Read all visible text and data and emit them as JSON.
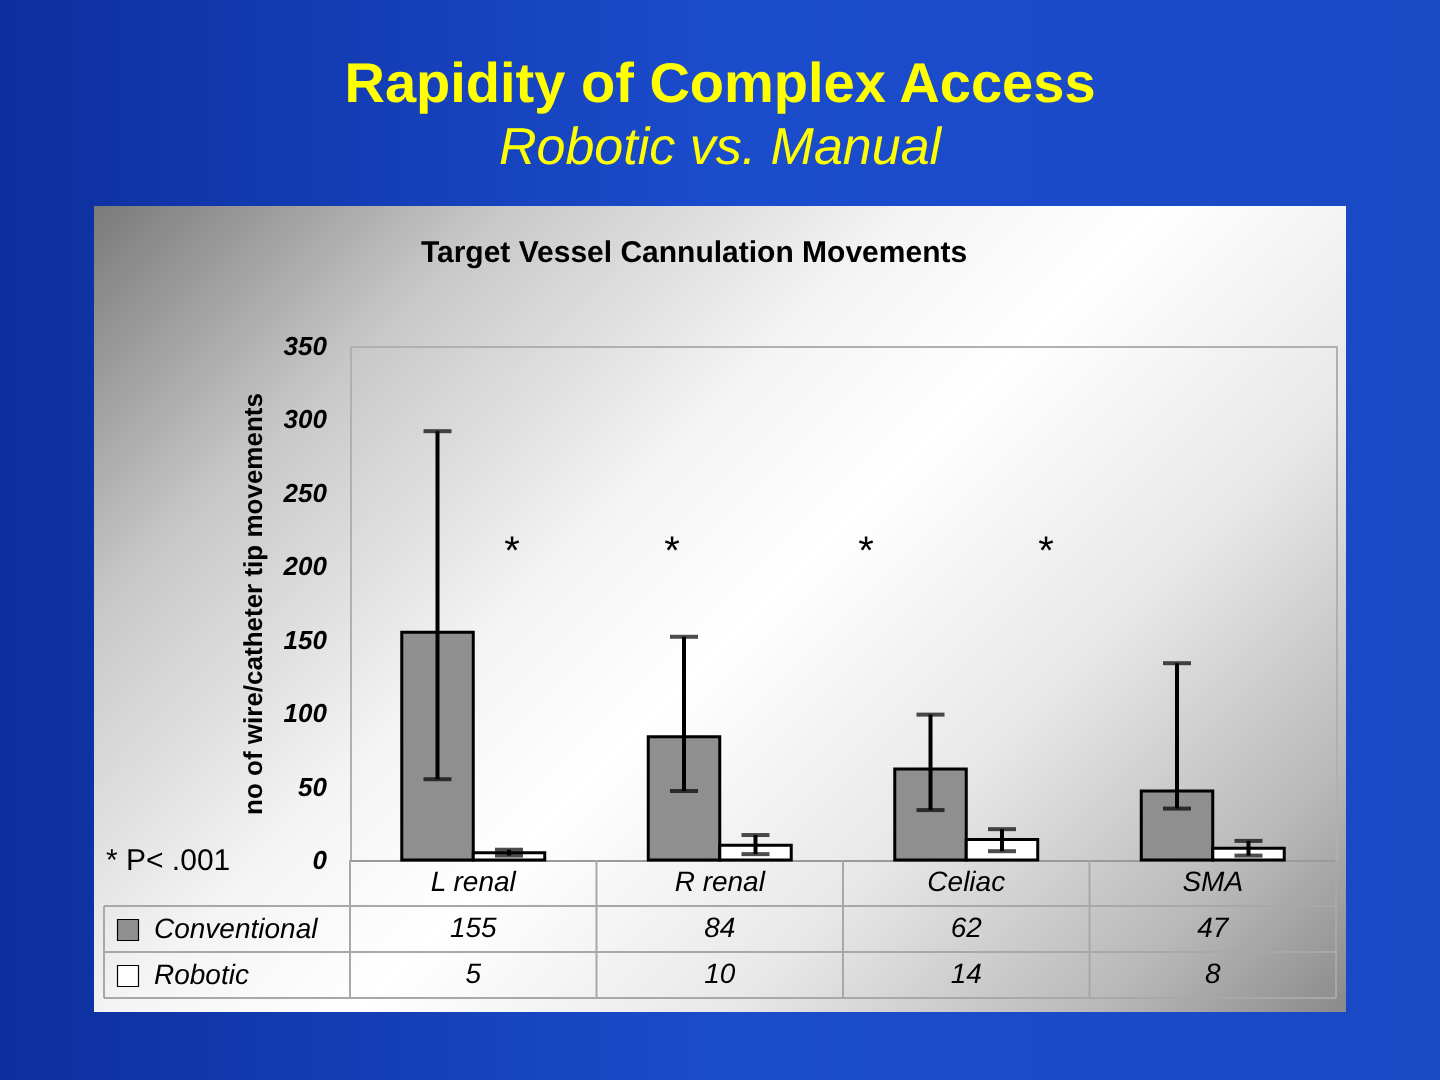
{
  "chart_data": {
    "type": "bar",
    "title": "Rapidity of Complex Access",
    "subtitle": "Robotic vs. Manual",
    "ylabel": "no of wire/catheter tip movements",
    "categories": [
      "L renal",
      "R renal",
      "Celiac",
      "SMA"
    ],
    "series": [
      {
        "name": "Conventional",
        "color": "#8f8f8f",
        "values": [
          155,
          84,
          62,
          47
        ],
        "errors": [
          [
            55,
            292
          ],
          [
            47,
            152
          ],
          [
            34,
            99
          ],
          [
            35,
            134
          ]
        ]
      },
      {
        "name": "Robotic",
        "color": "#ffffff",
        "values": [
          5,
          10,
          14,
          8
        ],
        "errors": [
          [
            3,
            7
          ],
          [
            4,
            17
          ],
          [
            6,
            21
          ],
          [
            3,
            13
          ]
        ]
      }
    ],
    "ylim": [
      0,
      350
    ],
    "yticks": [
      0,
      50,
      100,
      150,
      200,
      250,
      300,
      350
    ],
    "legend": "bottom left",
    "data_labels": true,
    "annotations": [
      "Target Vessel Cannulation Movements",
      "* P< .001",
      "*",
      "*",
      "*",
      "*"
    ]
  }
}
